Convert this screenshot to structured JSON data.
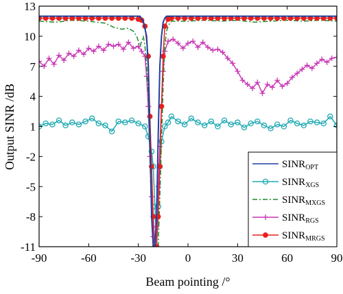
{
  "chart_data": {
    "type": "line",
    "title": "",
    "xlabel": "Beam pointing /°",
    "ylabel": "Output SINR /dB",
    "xlim": [
      -90,
      90
    ],
    "ylim": [
      -11,
      13
    ],
    "xticks": [
      -90,
      -60,
      -30,
      0,
      30,
      60,
      90
    ],
    "yticks": [
      -11,
      -8,
      -5,
      -2,
      1,
      4,
      7,
      10,
      13
    ],
    "legend_position": "bottom-right",
    "grid": false,
    "series": [
      {
        "name": "SINR",
        "name_sub": "OPT",
        "color": "#1f3f9f",
        "style": "solid",
        "marker": "none",
        "x": [
          -90,
          -32,
          -29,
          -27,
          -25,
          -24,
          -23,
          -22,
          -21,
          -20,
          -19,
          -18,
          -17,
          -16,
          -15,
          -14,
          -13,
          -11,
          90
        ],
        "y": [
          12.0,
          12.0,
          12.0,
          11.5,
          10.0,
          7.0,
          0.0,
          -8.0,
          -11.0,
          -11.0,
          -8.0,
          0.0,
          7.0,
          10.0,
          11.4,
          11.8,
          12.0,
          12.0,
          12.0
        ]
      },
      {
        "name": "SINR",
        "name_sub": "XGS",
        "color": "#1fa9b3",
        "style": "solid",
        "marker": "circle",
        "x": [
          -90,
          -86,
          -82,
          -78,
          -74,
          -70,
          -66,
          -62,
          -58,
          -54,
          -50,
          -46,
          -42,
          -38,
          -34,
          -30,
          -26,
          -24,
          -22,
          -21,
          -20,
          -19,
          -18,
          -17,
          -16,
          -14,
          -12,
          -10,
          -6,
          -2,
          2,
          6,
          10,
          14,
          18,
          22,
          26,
          30,
          34,
          38,
          42,
          46,
          50,
          54,
          58,
          62,
          66,
          70,
          74,
          78,
          82,
          86,
          90
        ],
        "y": [
          1.0,
          1.3,
          1.2,
          1.6,
          1.1,
          1.4,
          1.2,
          1.5,
          1.8,
          1.3,
          1.1,
          0.5,
          1.5,
          1.4,
          1.6,
          1.3,
          1.0,
          0.0,
          -1.5,
          -3.0,
          -7.0,
          -11.0,
          -7.0,
          -3.0,
          -0.5,
          1.0,
          1.4,
          2.0,
          1.5,
          1.2,
          1.8,
          1.4,
          1.1,
          1.5,
          1.0,
          1.6,
          1.2,
          1.4,
          0.9,
          1.3,
          1.5,
          1.1,
          0.8,
          1.2,
          1.0,
          1.6,
          1.3,
          1.1,
          1.5,
          1.4,
          1.3,
          2.0,
          1.1
        ]
      },
      {
        "name": "SINR",
        "name_sub": "MXGS",
        "color": "#1a8a2a",
        "style": "dashdot",
        "marker": "none",
        "x": [
          -90,
          -80,
          -70,
          -60,
          -50,
          -45,
          -40,
          -36,
          -33,
          -31,
          -30,
          -29,
          -28,
          -27,
          -26,
          -25,
          -24,
          -23,
          -22,
          -21,
          -20,
          -19,
          -18,
          -17,
          -16,
          -15,
          -14,
          -13,
          -12,
          -11,
          -10,
          0,
          10,
          20,
          30,
          40,
          50,
          60,
          70,
          80,
          90
        ],
        "y": [
          11.5,
          11.4,
          11.6,
          11.5,
          11.3,
          10.9,
          10.7,
          10.8,
          10.5,
          10.0,
          9.5,
          9.0,
          9.5,
          10.0,
          9.0,
          7.0,
          4.0,
          -2.0,
          -8.0,
          -11.0,
          -11.0,
          -11.0,
          -11.0,
          -6.0,
          -0.5,
          5.0,
          9.0,
          10.5,
          11.0,
          11.3,
          11.5,
          11.5,
          11.6,
          11.5,
          11.6,
          11.4,
          11.5,
          11.6,
          11.5,
          11.6,
          11.5
        ]
      },
      {
        "name": "SINR",
        "name_sub": "RGS",
        "color": "#c837b4",
        "style": "solid",
        "marker": "plus",
        "x": [
          -90,
          -87,
          -84,
          -81,
          -78,
          -75,
          -72,
          -69,
          -66,
          -63,
          -60,
          -57,
          -54,
          -51,
          -48,
          -45,
          -42,
          -39,
          -36,
          -33,
          -30,
          -28,
          -26,
          -25,
          -24,
          -23,
          -22,
          -21,
          -20,
          -19,
          -18,
          -17,
          -16,
          -15,
          -14,
          -12,
          -9,
          -6,
          -3,
          0,
          3,
          6,
          9,
          12,
          15,
          18,
          21,
          24,
          27,
          30,
          33,
          36,
          39,
          42,
          45,
          48,
          51,
          54,
          57,
          60,
          63,
          66,
          69,
          72,
          75,
          78,
          81,
          84,
          87,
          90
        ],
        "y": [
          7.5,
          7.0,
          7.8,
          7.2,
          8.1,
          7.6,
          8.3,
          8.0,
          8.6,
          8.2,
          8.8,
          8.5,
          9.0,
          8.6,
          9.2,
          9.0,
          9.2,
          8.7,
          9.4,
          8.8,
          9.0,
          8.5,
          8.0,
          6.0,
          3.0,
          -2.0,
          -6.0,
          -10.0,
          -11.0,
          -9.0,
          -5.0,
          -1.0,
          3.0,
          6.5,
          8.5,
          9.5,
          9.7,
          9.3,
          8.8,
          9.3,
          9.5,
          8.9,
          9.4,
          8.9,
          8.6,
          8.7,
          8.4,
          7.8,
          7.3,
          6.5,
          5.6,
          5.2,
          4.8,
          5.4,
          4.3,
          5.2,
          4.9,
          5.6,
          5.0,
          5.3,
          5.9,
          6.3,
          6.7,
          7.1,
          6.8,
          7.3,
          7.7,
          7.4,
          7.8,
          7.9
        ]
      },
      {
        "name": "SINR",
        "name_sub": "MRGS",
        "color": "#e8201c",
        "style": "solid",
        "marker": "filled-circle",
        "x": [
          -90,
          -86,
          -82,
          -78,
          -74,
          -70,
          -66,
          -62,
          -58,
          -54,
          -50,
          -46,
          -42,
          -38,
          -34,
          -30,
          -28,
          -26,
          -24,
          -23,
          -22,
          -21,
          -20,
          -19,
          -18,
          -17,
          -16,
          -15,
          -14,
          -12,
          -10,
          -6,
          -2,
          2,
          6,
          10,
          14,
          18,
          22,
          26,
          30,
          34,
          38,
          42,
          46,
          50,
          54,
          58,
          62,
          66,
          70,
          74,
          78,
          82,
          86,
          90
        ],
        "y": [
          11.8,
          11.8,
          11.8,
          11.8,
          11.8,
          11.8,
          11.8,
          11.8,
          11.8,
          11.8,
          11.8,
          11.8,
          11.8,
          11.8,
          11.8,
          11.7,
          11.6,
          11.0,
          8.0,
          2.0,
          -3.0,
          -8.0,
          -11.0,
          -11.0,
          -8.0,
          -3.0,
          3.0,
          8.0,
          11.0,
          11.7,
          11.8,
          11.8,
          11.8,
          11.8,
          11.8,
          11.8,
          11.8,
          11.8,
          11.8,
          11.8,
          11.8,
          11.8,
          11.8,
          11.8,
          11.8,
          11.8,
          11.8,
          11.8,
          11.8,
          11.8,
          11.8,
          11.8,
          11.8,
          11.8,
          11.8,
          11.8
        ]
      }
    ]
  }
}
